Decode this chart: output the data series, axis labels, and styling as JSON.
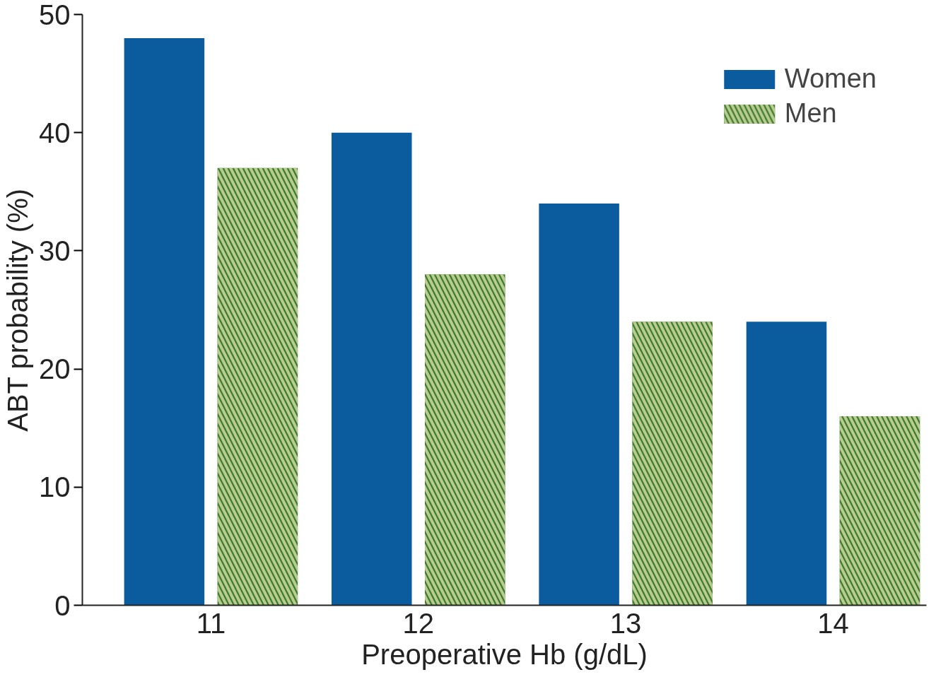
{
  "chart_data": {
    "type": "bar",
    "xlabel": "Preoperative Hb (g/dL)",
    "ylabel": "ABT probability (%)",
    "categories": [
      "11",
      "12",
      "13",
      "14"
    ],
    "series": [
      {
        "name": "Women",
        "color": "#0b5c9e",
        "values": [
          48,
          40,
          34,
          24
        ]
      },
      {
        "name": "Men",
        "color": "#3f7a35",
        "values": [
          37,
          28,
          24,
          16
        ]
      }
    ],
    "ylim": [
      0,
      50
    ],
    "yticks": [
      0,
      10,
      20,
      30,
      40,
      50
    ],
    "grid": false,
    "legend": "top right"
  }
}
